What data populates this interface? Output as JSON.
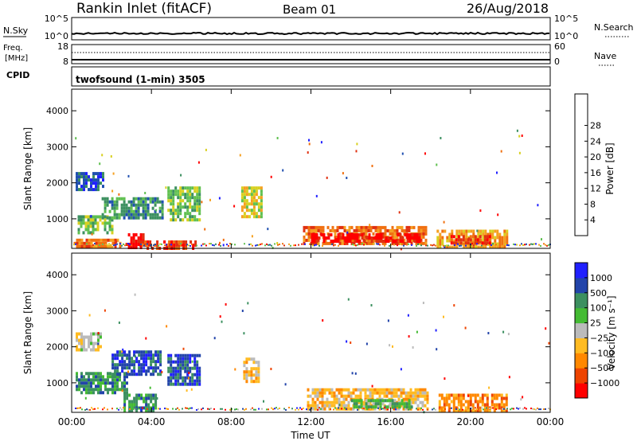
{
  "header": {
    "title": "Rankin Inlet (fitACF)",
    "beam": "Beam 01",
    "date": "26/Aug/2018"
  },
  "summary_panels": {
    "nsky": {
      "label": "N.Sky",
      "ticks": [
        "10^5",
        "10^0"
      ]
    },
    "nsearch": {
      "label": "N.Search",
      "ticks": [
        "10^5",
        "10^0"
      ]
    },
    "freq": {
      "label_line1": "Freq.",
      "label_line2": "[MHz]",
      "ticks": [
        "18",
        "8"
      ]
    },
    "nave": {
      "label": "Nave",
      "ticks": [
        "60",
        "0"
      ]
    },
    "cpid": {
      "label": "CPID",
      "text": "twofsound (1-min) 3505"
    }
  },
  "colors": {
    "power": [
      "#2020ff",
      "#2050b0",
      "#3c9060",
      "#60c050",
      "#d8d020",
      "#f5a020",
      "#f07010",
      "#e03010",
      "#ff0000"
    ],
    "velocity": [
      "#ff0000",
      "#ee4400",
      "#ff8800",
      "#ffbb22",
      "#bbbbbb",
      "#44bb33",
      "#3c9060",
      "#2244aa",
      "#2020ff"
    ]
  },
  "chart_data": [
    {
      "type": "heatmap",
      "name": "power",
      "x_ticks": [
        "00:00",
        "04:00",
        "08:00",
        "12:00",
        "16:00",
        "20:00",
        "00:00"
      ],
      "y_ticks": [
        "1000",
        "2000",
        "3000",
        "4000"
      ],
      "ylabel": "Slant Range [km]",
      "ylim": [
        180,
        4600
      ],
      "colorbar": {
        "label": "Power [dB]",
        "ticks": [
          "4",
          "8",
          "12",
          "16",
          "20",
          "24",
          "28"
        ]
      },
      "blobs": [
        {
          "t0": 0.1,
          "t1": 2.4,
          "r0": 250,
          "r1": 450,
          "bin": 6
        },
        {
          "t0": 0.3,
          "t1": 2.0,
          "r0": 600,
          "r1": 1100,
          "bin": 3
        },
        {
          "t0": 0.2,
          "t1": 1.6,
          "r0": 1800,
          "r1": 2300,
          "bin": 1
        },
        {
          "t0": 1.5,
          "t1": 4.5,
          "r0": 1000,
          "r1": 1600,
          "bin": 2
        },
        {
          "t0": 2.7,
          "t1": 3.6,
          "r0": 180,
          "r1": 600,
          "bin": 8
        },
        {
          "t0": 3.4,
          "t1": 6.2,
          "r0": 200,
          "r1": 400,
          "bin": 7
        },
        {
          "t0": 4.8,
          "t1": 6.4,
          "r0": 1000,
          "r1": 1900,
          "bin": 3
        },
        {
          "t0": 8.5,
          "t1": 9.5,
          "r0": 1100,
          "r1": 1900,
          "bin": 4
        },
        {
          "t0": 11.6,
          "t1": 17.8,
          "r0": 300,
          "r1": 800,
          "bin": 6
        },
        {
          "t0": 12.0,
          "t1": 17.5,
          "r0": 400,
          "r1": 600,
          "bin": 8
        },
        {
          "t0": 18.3,
          "t1": 21.8,
          "r0": 250,
          "r1": 700,
          "bin": 5
        },
        {
          "t0": 19.0,
          "t1": 21.0,
          "r0": 350,
          "r1": 550,
          "bin": 7
        }
      ]
    },
    {
      "type": "heatmap",
      "name": "velocity",
      "x_ticks": [
        "00:00",
        "04:00",
        "08:00",
        "12:00",
        "16:00",
        "20:00",
        "00:00"
      ],
      "xlabel": "Time UT",
      "y_ticks": [
        "1000",
        "2000",
        "3000",
        "4000"
      ],
      "ylabel": "Slant Range [km]",
      "ylim": [
        180,
        4600
      ],
      "colorbar": {
        "label": "Velocity [m s⁻¹]",
        "ticks": [
          "1000",
          "500",
          "100",
          "25",
          "−25",
          "−100",
          "−500",
          "−1000"
        ]
      },
      "blobs": [
        {
          "t0": 0.2,
          "t1": 2.8,
          "r0": 700,
          "r1": 1300,
          "bin": 6
        },
        {
          "t0": 0.2,
          "t1": 1.4,
          "r0": 1900,
          "r1": 2400,
          "bin": 4
        },
        {
          "t0": 2.0,
          "t1": 4.5,
          "r0": 1200,
          "r1": 1900,
          "bin": 7
        },
        {
          "t0": 2.6,
          "t1": 4.2,
          "r0": 200,
          "r1": 700,
          "bin": 6
        },
        {
          "t0": 4.8,
          "t1": 6.4,
          "r0": 1000,
          "r1": 1800,
          "bin": 7
        },
        {
          "t0": 8.6,
          "t1": 9.4,
          "r0": 1000,
          "r1": 1700,
          "bin": 3
        },
        {
          "t0": 11.8,
          "t1": 17.8,
          "r0": 300,
          "r1": 850,
          "bin": 3
        },
        {
          "t0": 14.0,
          "t1": 17.0,
          "r0": 350,
          "r1": 550,
          "bin": 5
        },
        {
          "t0": 18.4,
          "t1": 21.8,
          "r0": 200,
          "r1": 700,
          "bin": 2
        }
      ]
    }
  ]
}
